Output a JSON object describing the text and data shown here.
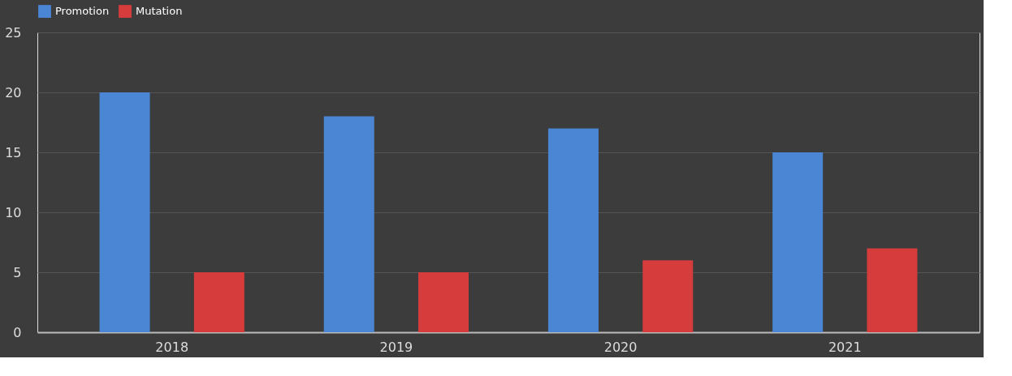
{
  "chart_data": {
    "type": "bar",
    "categories": [
      "2018",
      "2019",
      "2020",
      "2021"
    ],
    "series": [
      {
        "name": "Promotion",
        "color": "#4a86d4",
        "values": [
          20,
          18,
          17,
          15
        ]
      },
      {
        "name": "Mutation",
        "color": "#d63c3c",
        "values": [
          5,
          5,
          6,
          7
        ]
      }
    ],
    "ylim": [
      0,
      25
    ],
    "yticks": [
      0,
      5,
      10,
      15,
      20,
      25
    ],
    "grid": "y",
    "legend": "top"
  }
}
